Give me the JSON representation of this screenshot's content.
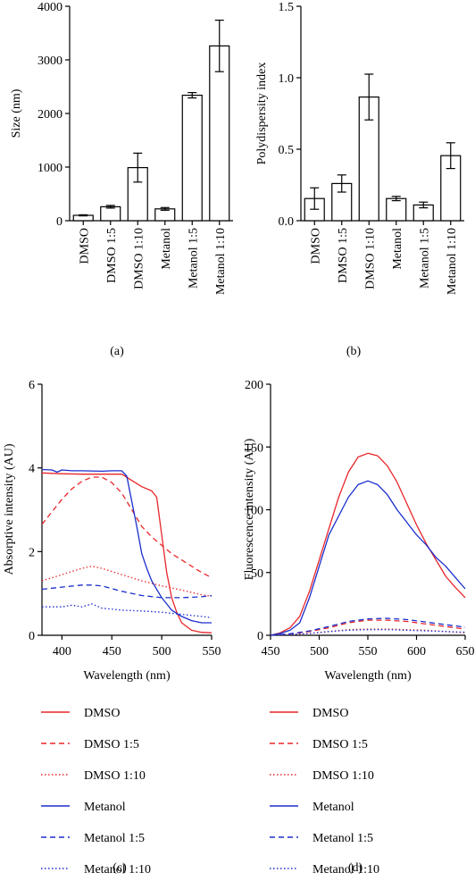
{
  "chart_data": [
    {
      "type": "bar",
      "panel_label": "(a)",
      "categories": [
        "DMSO",
        "DMSO 1:5",
        "DMSO 1:10",
        "Metanol",
        "Metanol 1:5",
        "Metanol 1:10"
      ],
      "values": [
        100,
        260,
        990,
        220,
        2340,
        3260
      ],
      "errors": [
        10,
        25,
        270,
        25,
        50,
        480
      ],
      "xlabel": "",
      "ylabel": "Size (nm)",
      "ylim": [
        0,
        4000
      ],
      "yticks": [
        0,
        1000,
        2000,
        3000,
        4000
      ],
      "ytick_labels": [
        "0",
        "1000",
        "2000",
        "3000",
        "4000"
      ],
      "grid": false
    },
    {
      "type": "bar",
      "panel_label": "(b)",
      "categories": [
        "DMSO",
        "DMSO 1:5",
        "DMSO 1:10",
        "Metanol",
        "Metanol 1:5",
        "Metanol 1:10"
      ],
      "values": [
        0.155,
        0.26,
        0.865,
        0.155,
        0.11,
        0.455
      ],
      "errors": [
        0.075,
        0.06,
        0.16,
        0.015,
        0.02,
        0.09
      ],
      "xlabel": "",
      "ylabel": "Polydispersity index",
      "ylim": [
        0,
        1.5
      ],
      "yticks": [
        0,
        0.5,
        1.0,
        1.5
      ],
      "ytick_labels": [
        "0.0",
        "0.5",
        "1.0",
        "1.5"
      ],
      "grid": false
    },
    {
      "type": "line",
      "panel_label": "(c)",
      "xlabel": "Wavelength (nm)",
      "ylabel": "Absorptive intensity (AU)",
      "xlim": [
        380,
        550
      ],
      "ylim": [
        0,
        6
      ],
      "xticks": [
        400,
        450,
        500,
        550
      ],
      "yticks": [
        0,
        2,
        4,
        6
      ],
      "grid": false,
      "series": [
        {
          "name": "DMSO",
          "color": "#e8262a",
          "dash": "solid",
          "x": [
            380,
            400,
            420,
            440,
            460,
            470,
            480,
            490,
            495,
            500,
            505,
            510,
            515,
            520,
            530,
            540,
            550
          ],
          "y": [
            3.88,
            3.86,
            3.85,
            3.85,
            3.85,
            3.7,
            3.55,
            3.45,
            3.3,
            2.4,
            1.5,
            0.9,
            0.55,
            0.3,
            0.12,
            0.07,
            0.06
          ]
        },
        {
          "name": "DMSO 1:5",
          "color": "#e8262a",
          "dash": "dashed",
          "x": [
            380,
            390,
            400,
            410,
            420,
            430,
            440,
            450,
            460,
            470,
            480,
            490,
            500,
            510,
            520,
            530,
            540,
            550
          ],
          "y": [
            2.65,
            2.95,
            3.25,
            3.5,
            3.68,
            3.78,
            3.78,
            3.65,
            3.4,
            3.0,
            2.6,
            2.35,
            2.15,
            1.95,
            1.8,
            1.65,
            1.5,
            1.38
          ]
        },
        {
          "name": "DMSO 1:10",
          "color": "#e8262a",
          "dash": "dotted",
          "x": [
            380,
            400,
            420,
            430,
            440,
            460,
            480,
            500,
            520,
            540,
            550
          ],
          "y": [
            1.3,
            1.45,
            1.6,
            1.65,
            1.6,
            1.45,
            1.3,
            1.18,
            1.08,
            0.97,
            0.93
          ]
        },
        {
          "name": "Metanol",
          "color": "#1a2ecc",
          "dash": "solid",
          "x": [
            380,
            390,
            395,
            400,
            410,
            420,
            440,
            450,
            460,
            465,
            470,
            475,
            480,
            485,
            490,
            500,
            510,
            520,
            530,
            540,
            550
          ],
          "y": [
            3.96,
            3.95,
            3.9,
            3.95,
            3.93,
            3.93,
            3.92,
            3.93,
            3.93,
            3.8,
            3.2,
            2.6,
            1.95,
            1.6,
            1.3,
            0.9,
            0.6,
            0.45,
            0.35,
            0.3,
            0.3
          ]
        },
        {
          "name": "Metanol 1:5",
          "color": "#1a2ecc",
          "dash": "dashed",
          "x": [
            380,
            400,
            420,
            430,
            440,
            460,
            480,
            500,
            520,
            540,
            550
          ],
          "y": [
            1.1,
            1.15,
            1.2,
            1.2,
            1.18,
            1.05,
            0.95,
            0.9,
            0.9,
            0.92,
            0.95
          ]
        },
        {
          "name": "Metanol 1:10",
          "color": "#1a2ecc",
          "dash": "dotted",
          "x": [
            380,
            400,
            410,
            420,
            430,
            440,
            460,
            480,
            500,
            520,
            540,
            550
          ],
          "y": [
            0.68,
            0.68,
            0.72,
            0.68,
            0.75,
            0.65,
            0.6,
            0.58,
            0.55,
            0.5,
            0.45,
            0.42
          ]
        }
      ]
    },
    {
      "type": "line",
      "panel_label": "(d)",
      "xlabel": "Wavelength (nm)",
      "ylabel": "Fluorescence intensity (AU)",
      "xlim": [
        450,
        650
      ],
      "ylim": [
        0,
        200
      ],
      "xticks": [
        450,
        500,
        550,
        600,
        650
      ],
      "yticks": [
        0,
        50,
        100,
        150,
        200
      ],
      "grid": false,
      "series": [
        {
          "name": "DMSO",
          "color": "#e8262a",
          "dash": "solid",
          "x": [
            450,
            460,
            470,
            480,
            490,
            500,
            510,
            520,
            530,
            540,
            550,
            560,
            570,
            580,
            590,
            600,
            610,
            620,
            630,
            640,
            650
          ],
          "y": [
            0,
            2,
            6,
            15,
            35,
            60,
            85,
            110,
            130,
            142,
            145,
            143,
            135,
            122,
            105,
            88,
            73,
            60,
            47,
            38,
            30
          ]
        },
        {
          "name": "DMSO 1:5",
          "color": "#e8262a",
          "dash": "dashed",
          "x": [
            450,
            470,
            490,
            510,
            530,
            550,
            570,
            590,
            610,
            630,
            650
          ],
          "y": [
            0,
            1,
            3,
            6,
            10,
            12,
            12,
            11,
            9,
            7,
            5
          ]
        },
        {
          "name": "DMSO 1:10",
          "color": "#e8262a",
          "dash": "dotted",
          "x": [
            450,
            470,
            490,
            510,
            530,
            550,
            570,
            590,
            610,
            630,
            650
          ],
          "y": [
            0,
            0.5,
            1.5,
            3,
            4.5,
            5,
            5,
            4.5,
            4,
            3,
            2
          ]
        },
        {
          "name": "Metanol",
          "color": "#1a2ecc",
          "dash": "solid",
          "x": [
            450,
            460,
            470,
            480,
            490,
            500,
            510,
            520,
            530,
            540,
            550,
            560,
            570,
            580,
            590,
            600,
            610,
            620,
            630,
            640,
            650
          ],
          "y": [
            0,
            1.5,
            4,
            10,
            30,
            55,
            80,
            95,
            110,
            120,
            123,
            120,
            112,
            100,
            90,
            80,
            72,
            62,
            55,
            46,
            37
          ]
        },
        {
          "name": "Metanol 1:5",
          "color": "#1a2ecc",
          "dash": "dashed",
          "x": [
            450,
            470,
            490,
            510,
            530,
            550,
            570,
            590,
            610,
            630,
            650
          ],
          "y": [
            0,
            1.2,
            3.5,
            7,
            11,
            13,
            13.5,
            12.5,
            10.5,
            8.5,
            6.5
          ]
        },
        {
          "name": "Metanol 1:10",
          "color": "#1a2ecc",
          "dash": "dotted",
          "x": [
            450,
            470,
            490,
            510,
            530,
            550,
            570,
            590,
            610,
            630,
            650
          ],
          "y": [
            0,
            0.6,
            1.5,
            3,
            4,
            4.5,
            4.5,
            4,
            3.5,
            3,
            2.5
          ]
        }
      ]
    }
  ]
}
